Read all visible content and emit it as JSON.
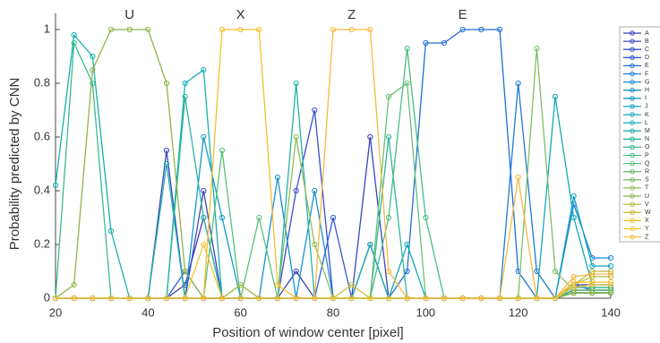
{
  "chart_data": {
    "type": "line",
    "y_label": "Probability predicted by CNN",
    "x_label": "Position of window center [pixel]",
    "annotations": [
      "U",
      "X",
      "Z",
      "E"
    ],
    "xlim": [
      20,
      140
    ],
    "xticks": [
      20,
      40,
      60,
      80,
      100,
      120,
      140
    ],
    "ylim": [
      0,
      1.06
    ],
    "yticks": [
      0,
      0.2,
      0.4,
      0.6,
      0.8,
      1
    ],
    "grid": false,
    "legend": "right",
    "x": [
      20,
      24,
      28,
      32,
      36,
      40,
      44,
      48,
      52,
      56,
      60,
      64,
      68,
      72,
      76,
      80,
      84,
      88,
      92,
      96,
      100,
      104,
      108,
      112,
      116,
      120,
      124,
      128,
      132,
      136,
      140
    ],
    "series": [
      {
        "name": "A",
        "color": "#3b3bb0",
        "values": [
          0,
          0,
          0,
          0,
          0,
          0,
          0,
          0.05,
          0.3,
          0,
          0,
          0,
          0,
          0.1,
          0,
          0,
          0,
          0.2,
          0,
          0,
          0,
          0,
          0,
          0,
          0,
          0,
          0,
          0,
          0.05,
          0.05,
          0.05
        ]
      },
      {
        "name": "B",
        "color": "#3a45c0",
        "values": [
          0,
          0,
          0,
          0,
          0,
          0,
          0.55,
          0,
          0.4,
          0,
          0,
          0,
          0,
          0,
          0,
          0,
          0,
          0.6,
          0,
          0,
          0,
          0,
          0,
          0,
          0,
          0,
          0,
          0,
          0.02,
          0.02,
          0.02
        ]
      },
      {
        "name": "C",
        "color": "#3550cc",
        "values": [
          0,
          0,
          0,
          0,
          0,
          0,
          0,
          0,
          0,
          0,
          0,
          0,
          0,
          0.4,
          0.7,
          0,
          0,
          0,
          0,
          0,
          0,
          0,
          0,
          0,
          0,
          0,
          0,
          0,
          0.03,
          0.03,
          0.03
        ]
      },
      {
        "name": "D",
        "color": "#2f5cd6",
        "values": [
          0,
          0,
          0,
          0,
          0,
          0,
          0,
          0.1,
          0,
          0,
          0,
          0,
          0,
          0,
          0,
          0.3,
          0,
          0,
          0,
          0,
          0,
          0,
          0,
          0,
          0,
          0,
          0,
          0,
          0.02,
          0.02,
          0.02
        ]
      },
      {
        "name": "E",
        "color": "#1f6fd8",
        "values": [
          0,
          0,
          0,
          0,
          0,
          0,
          0,
          0,
          0,
          0,
          0,
          0,
          0,
          0,
          0,
          0,
          0,
          0,
          0,
          0.1,
          0.95,
          0.95,
          1,
          1,
          1,
          0.1,
          0,
          0,
          0.05,
          0.03,
          0.03
        ]
      },
      {
        "name": "F",
        "color": "#1c7ad8",
        "values": [
          0,
          0,
          0,
          0,
          0,
          0,
          0,
          0,
          0,
          0,
          0,
          0,
          0,
          0,
          0,
          0,
          0,
          0,
          0,
          0,
          0,
          0,
          0,
          0,
          0,
          0.8,
          0.1,
          0,
          0.04,
          0.04,
          0.04
        ]
      },
      {
        "name": "G",
        "color": "#1a86d4",
        "values": [
          0,
          0,
          0,
          0,
          0,
          0,
          0,
          0,
          0,
          0,
          0,
          0,
          0,
          0,
          0,
          0,
          0,
          0,
          0,
          0,
          0,
          0,
          0,
          0,
          0,
          0,
          0,
          0,
          0.35,
          0.15,
          0.15
        ]
      },
      {
        "name": "H",
        "color": "#1890cf",
        "values": [
          0,
          0,
          0,
          0,
          0,
          0,
          0,
          0,
          0,
          0,
          0,
          0,
          0.45,
          0,
          0.4,
          0,
          0,
          0,
          0,
          0,
          0,
          0,
          0,
          0,
          0,
          0,
          0,
          0,
          0.03,
          0.03,
          0.03
        ]
      },
      {
        "name": "I",
        "color": "#139ac8",
        "values": [
          0,
          0,
          0,
          0,
          0,
          0,
          0,
          0,
          0.6,
          0.3,
          0,
          0,
          0,
          0,
          0,
          0,
          0,
          0,
          0,
          0,
          0,
          0,
          0,
          0,
          0,
          0,
          0,
          0,
          0.02,
          0.02,
          0.02
        ]
      },
      {
        "name": "J",
        "color": "#10a2c0",
        "values": [
          0,
          0,
          0,
          0,
          0,
          0,
          0,
          0,
          0,
          0,
          0,
          0,
          0,
          0,
          0,
          0,
          0,
          0,
          0,
          0,
          0,
          0,
          0,
          0,
          0,
          0,
          0,
          0,
          0.38,
          0.12,
          0.12
        ]
      },
      {
        "name": "K",
        "color": "#12a8b8",
        "values": [
          0,
          0,
          0,
          0,
          0,
          0,
          0,
          0,
          0,
          0,
          0,
          0,
          0,
          0,
          0,
          0,
          0,
          0,
          0,
          0.2,
          0,
          0,
          0,
          0,
          0,
          0,
          0,
          0.75,
          0.3,
          0.05,
          0.05
        ]
      },
      {
        "name": "L",
        "color": "#18aeb0",
        "values": [
          0.42,
          0.98,
          0.9,
          0.25,
          0,
          0,
          0,
          0.8,
          0.85,
          0,
          0,
          0,
          0,
          0,
          0,
          0,
          0,
          0.2,
          0,
          0,
          0,
          0,
          0,
          0,
          0,
          0,
          0,
          0,
          0.03,
          0.03,
          0.03
        ]
      },
      {
        "name": "M",
        "color": "#22b2a6",
        "values": [
          0,
          0,
          0,
          0,
          0,
          0,
          0.5,
          0,
          0,
          0,
          0.05,
          0,
          0,
          0.8,
          0,
          0,
          0,
          0,
          0,
          0,
          0,
          0,
          0,
          0,
          0,
          0,
          0,
          0,
          0.02,
          0.02,
          0.02
        ]
      },
      {
        "name": "N",
        "color": "#2db69b",
        "values": [
          0,
          0,
          0,
          0,
          0,
          0,
          0,
          0.75,
          0.3,
          0,
          0,
          0,
          0,
          0,
          0,
          0,
          0,
          0,
          0.6,
          0,
          0,
          0,
          0,
          0,
          0,
          0,
          0,
          0,
          0.02,
          0.02,
          0.02
        ]
      },
      {
        "name": "O",
        "color": "#3aba90",
        "values": [
          0,
          0.95,
          0.8,
          0,
          0,
          0,
          0,
          0,
          0,
          0,
          0,
          0,
          0,
          0,
          0,
          0,
          0,
          0,
          0,
          0,
          0,
          0,
          0,
          0,
          0,
          0,
          0,
          0,
          0.04,
          0.04,
          0.04
        ]
      },
      {
        "name": "P",
        "color": "#48bd85",
        "values": [
          0,
          0,
          0,
          0,
          0,
          0,
          0,
          0,
          0,
          0,
          0,
          0,
          0,
          0,
          0,
          0,
          0,
          0,
          0.3,
          0.93,
          0.3,
          0,
          0,
          0,
          0,
          0,
          0,
          0,
          0.02,
          0.02,
          0.02
        ]
      },
      {
        "name": "Q",
        "color": "#58bf7a",
        "values": [
          0,
          0,
          0,
          0,
          0,
          0,
          0,
          0,
          0,
          0.55,
          0,
          0.3,
          0,
          0,
          0,
          0,
          0,
          0,
          0,
          0,
          0,
          0,
          0,
          0,
          0,
          0,
          0,
          0,
          0.02,
          0.02,
          0.02
        ]
      },
      {
        "name": "R",
        "color": "#6ac070",
        "values": [
          0,
          0,
          0,
          0,
          0,
          0,
          0,
          0,
          0,
          0,
          0,
          0,
          0,
          0,
          0,
          0,
          0,
          0,
          0.75,
          0.8,
          0,
          0,
          0,
          0,
          0,
          0,
          0,
          0,
          0.02,
          0.02,
          0.02
        ]
      },
      {
        "name": "S",
        "color": "#7cbf64",
        "values": [
          0,
          0,
          0,
          0,
          0,
          0,
          0,
          0,
          0,
          0,
          0,
          0,
          0,
          0,
          0,
          0,
          0,
          0,
          0,
          0,
          0,
          0,
          0,
          0,
          0,
          0,
          0.93,
          0.1,
          0.03,
          0.03,
          0.03
        ]
      },
      {
        "name": "T",
        "color": "#8ebd58",
        "values": [
          0,
          0,
          0,
          0,
          0,
          0,
          0,
          0,
          0,
          0,
          0,
          0,
          0,
          0.6,
          0.2,
          0,
          0,
          0,
          0,
          0,
          0,
          0,
          0,
          0,
          0,
          0,
          0,
          0,
          0.02,
          0.02,
          0.02
        ]
      },
      {
        "name": "U",
        "color": "#8db54a",
        "values": [
          0,
          0.05,
          0.85,
          1,
          1,
          1,
          0.8,
          0.1,
          0,
          0,
          0,
          0,
          0,
          0,
          0,
          0,
          0,
          0,
          0,
          0,
          0,
          0,
          0,
          0,
          0,
          0,
          0,
          0,
          0.02,
          0.02,
          0.02
        ]
      },
      {
        "name": "V",
        "color": "#b2bb45",
        "values": [
          0,
          0,
          0,
          0,
          0,
          0,
          0,
          0,
          0,
          0,
          0.05,
          0,
          0,
          0,
          0,
          0,
          0,
          0,
          0,
          0,
          0,
          0,
          0,
          0,
          0,
          0,
          0,
          0,
          0.05,
          0.1,
          0.1
        ]
      },
      {
        "name": "W",
        "color": "#c8bb3e",
        "values": [
          0,
          0,
          0,
          0,
          0,
          0,
          0,
          0,
          0,
          0,
          0,
          0,
          0,
          0,
          0,
          0,
          0.05,
          0,
          0,
          0,
          0,
          0,
          0,
          0,
          0,
          0,
          0,
          0,
          0.05,
          0.08,
          0.08
        ]
      },
      {
        "name": "X",
        "color": "#f0c030",
        "values": [
          0,
          0,
          0,
          0,
          0,
          0,
          0,
          0,
          0,
          1,
          1,
          1,
          0.05,
          0,
          0,
          0,
          0,
          0,
          0,
          0,
          0,
          0,
          0,
          0,
          0,
          0,
          0,
          0,
          0.06,
          0.06,
          0.06
        ]
      },
      {
        "name": "Y",
        "color": "#f2c63c",
        "values": [
          0,
          0,
          0,
          0,
          0,
          0,
          0,
          0,
          0.2,
          0,
          0,
          0,
          0,
          0,
          0,
          0,
          0,
          0,
          0,
          0,
          0,
          0,
          0,
          0,
          0,
          0,
          0,
          0,
          0.04,
          0.05,
          0.05
        ]
      },
      {
        "name": "Z",
        "color": "#f5b942",
        "values": [
          0,
          0,
          0,
          0,
          0,
          0,
          0,
          0,
          0,
          0,
          0,
          0,
          0,
          0,
          0,
          1,
          1,
          1,
          0.1,
          0,
          0,
          0,
          0,
          0,
          0,
          0.45,
          0,
          0,
          0.08,
          0.09,
          0.09
        ]
      }
    ]
  }
}
